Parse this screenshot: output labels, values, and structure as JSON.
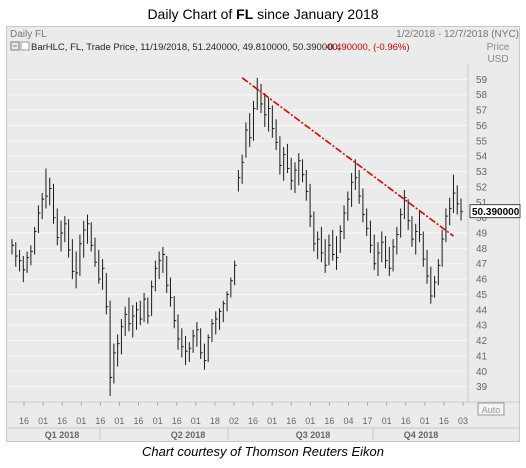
{
  "title": {
    "prefix": "Daily Chart of ",
    "symbol": "FL",
    "suffix": " since January 2018"
  },
  "caption": "Chart courtesy of Thomson Reuters Eikon",
  "panel": {
    "name": "Daily FL",
    "date_range": "1/2/2018 - 12/7/2018 (NYC)",
    "legend": "BarHLC, FL, Trade Price, 11/19/2018, 51.240000, 49.810000, 50.390000, ",
    "change": "-0.490000, (-0.96%)",
    "price_label": "Price",
    "currency_label": "USD",
    "last_price_tag": "50.390000",
    "auto_label": "Auto"
  },
  "colors": {
    "bars": "#1a1a1a",
    "trendline": "#e00000",
    "change": "#cc0000",
    "panel_bg": "#ebebeb"
  },
  "chart_data": {
    "type": "bar",
    "subtype": "ohlc",
    "ylim": [
      38,
      60
    ],
    "yticks": [
      39,
      40,
      41,
      42,
      43,
      44,
      45,
      46,
      47,
      48,
      49,
      50,
      51,
      52,
      53,
      54,
      55,
      56,
      57,
      58,
      59
    ],
    "xticks": [
      "16",
      "01",
      "16",
      "01",
      "16",
      "01",
      "16",
      "01",
      "16",
      "01",
      "18",
      "02",
      "16",
      "01",
      "16",
      "01",
      "16",
      "04",
      "17",
      "01",
      "16",
      "01",
      "16",
      "03"
    ],
    "quarters": [
      "Q1 2018",
      "Q2 2018",
      "Q3 2018",
      "Q4 2018"
    ],
    "last_price": 50.39,
    "series": [
      {
        "values": [
          [
            48.6,
            47.6,
            48.2
          ],
          [
            48.4,
            46.8,
            47.5
          ],
          [
            47.9,
            46.5,
            47.2
          ],
          [
            47.5,
            45.8,
            46.6
          ],
          [
            47.8,
            46.4,
            47.4
          ],
          [
            48.2,
            46.9,
            47.8
          ],
          [
            49.4,
            47.6,
            49.1
          ],
          [
            50.8,
            49.0,
            50.3
          ],
          [
            51.6,
            49.9,
            51.2
          ],
          [
            53.2,
            50.6,
            51.4
          ],
          [
            52.6,
            50.8,
            51.9
          ],
          [
            52.2,
            49.6,
            50.0
          ],
          [
            50.6,
            48.2,
            48.7
          ],
          [
            49.8,
            47.8,
            49.0
          ],
          [
            50.1,
            48.4,
            49.6
          ],
          [
            49.9,
            47.4,
            47.9
          ],
          [
            48.6,
            46.0,
            46.5
          ],
          [
            47.8,
            45.4,
            46.4
          ],
          [
            48.9,
            46.2,
            48.3
          ],
          [
            49.8,
            47.4,
            49.2
          ],
          [
            50.2,
            48.3,
            49.6
          ],
          [
            49.7,
            47.8,
            48.2
          ],
          [
            48.7,
            46.8,
            47.1
          ],
          [
            47.9,
            45.7,
            46.0
          ],
          [
            47.3,
            45.3,
            46.7
          ],
          [
            46.4,
            43.7,
            44.2
          ],
          [
            44.6,
            38.4,
            39.6
          ],
          [
            41.8,
            39.2,
            41.2
          ],
          [
            42.4,
            40.3,
            41.8
          ],
          [
            43.4,
            41.1,
            42.9
          ],
          [
            44.2,
            42.3,
            43.7
          ],
          [
            44.8,
            42.6,
            43.1
          ],
          [
            44.3,
            42.2,
            43.6
          ],
          [
            44.5,
            42.7,
            44.0
          ],
          [
            44.6,
            43.0,
            43.4
          ],
          [
            45.1,
            43.2,
            44.7
          ],
          [
            44.8,
            43.1,
            43.6
          ],
          [
            45.9,
            43.6,
            45.5
          ],
          [
            47.2,
            45.2,
            46.7
          ],
          [
            47.8,
            46.0,
            47.2
          ],
          [
            48.1,
            46.4,
            47.6
          ],
          [
            47.5,
            45.1,
            45.6
          ],
          [
            46.1,
            44.2,
            44.8
          ],
          [
            44.9,
            42.8,
            43.3
          ],
          [
            43.7,
            41.4,
            42.1
          ],
          [
            42.8,
            40.9,
            41.6
          ],
          [
            42.3,
            40.4,
            41.3
          ],
          [
            41.9,
            40.6,
            41.5
          ],
          [
            42.7,
            41.2,
            42.3
          ],
          [
            43.2,
            41.6,
            42.7
          ],
          [
            42.8,
            40.8,
            41.2
          ],
          [
            41.8,
            40.1,
            40.7
          ],
          [
            42.4,
            40.6,
            42.2
          ],
          [
            43.4,
            41.9,
            43.1
          ],
          [
            43.9,
            42.4,
            43.4
          ],
          [
            44.1,
            42.7,
            43.9
          ],
          [
            44.6,
            43.2,
            44.4
          ],
          [
            45.2,
            43.9,
            45.0
          ],
          [
            46.1,
            44.8,
            45.9
          ],
          [
            47.2,
            45.6,
            46.9
          ],
          [
            53.1,
            51.7,
            52.6
          ],
          [
            54.1,
            52.2,
            53.6
          ],
          [
            56.2,
            53.9,
            55.7
          ],
          [
            56.8,
            54.6,
            55.2
          ],
          [
            57.6,
            55.0,
            57.1
          ],
          [
            59.1,
            57.0,
            58.3
          ],
          [
            58.7,
            56.8,
            57.4
          ],
          [
            58.1,
            55.9,
            56.7
          ],
          [
            57.8,
            55.6,
            57.1
          ],
          [
            57.3,
            55.2,
            55.8
          ],
          [
            56.4,
            54.4,
            54.9
          ],
          [
            55.3,
            52.8,
            53.4
          ],
          [
            54.6,
            52.4,
            54.1
          ],
          [
            54.8,
            52.9,
            53.2
          ],
          [
            53.9,
            51.8,
            52.4
          ],
          [
            53.6,
            51.6,
            53.1
          ],
          [
            54.2,
            52.1,
            53.7
          ],
          [
            53.8,
            52.3,
            52.8
          ],
          [
            53.1,
            51.1,
            51.7
          ],
          [
            52.2,
            49.4,
            50.1
          ],
          [
            50.4,
            47.8,
            48.3
          ],
          [
            49.1,
            47.3,
            48.6
          ],
          [
            49.4,
            47.1,
            47.7
          ],
          [
            48.6,
            46.4,
            46.9
          ],
          [
            48.9,
            46.9,
            48.2
          ],
          [
            49.2,
            47.2,
            47.6
          ],
          [
            48.8,
            46.6,
            47.4
          ],
          [
            49.5,
            47.7,
            49.1
          ],
          [
            50.8,
            48.6,
            50.3
          ],
          [
            51.7,
            49.8,
            51.2
          ],
          [
            52.9,
            50.7,
            52.3
          ],
          [
            53.8,
            51.8,
            52.6
          ],
          [
            53.1,
            50.9,
            51.4
          ],
          [
            51.9,
            49.7,
            50.2
          ],
          [
            50.6,
            48.8,
            49.3
          ],
          [
            49.8,
            47.7,
            48.2
          ],
          [
            48.9,
            46.6,
            47.0
          ],
          [
            48.4,
            46.2,
            47.7
          ],
          [
            49.1,
            47.1,
            48.4
          ],
          [
            48.8,
            46.7,
            47.2
          ],
          [
            48.1,
            46.2,
            46.7
          ],
          [
            48.6,
            46.5,
            48.1
          ],
          [
            49.4,
            47.6,
            48.9
          ],
          [
            50.6,
            48.7,
            50.2
          ],
          [
            51.8,
            49.9,
            51.3
          ],
          [
            51.2,
            49.2,
            49.8
          ],
          [
            50.1,
            48.1,
            48.6
          ],
          [
            49.6,
            47.6,
            49.1
          ],
          [
            50.4,
            48.4,
            48.9
          ],
          [
            49.1,
            46.8,
            47.3
          ],
          [
            47.9,
            45.7,
            46.2
          ],
          [
            46.8,
            44.4,
            44.9
          ],
          [
            46.2,
            44.8,
            45.8
          ],
          [
            47.3,
            45.6,
            46.9
          ],
          [
            49.2,
            46.8,
            48.6
          ],
          [
            50.6,
            48.4,
            50.1
          ],
          [
            51.3,
            49.5,
            50.6
          ],
          [
            52.8,
            50.3,
            51.6
          ],
          [
            52.1,
            50.2,
            50.9
          ],
          [
            51.24,
            49.81,
            50.39
          ]
        ]
      }
    ],
    "annotations": [
      {
        "type": "trendline",
        "style": "dash-dot",
        "from": [
          59.1,
          0
        ],
        "to": [
          48.8,
          1
        ]
      }
    ]
  }
}
